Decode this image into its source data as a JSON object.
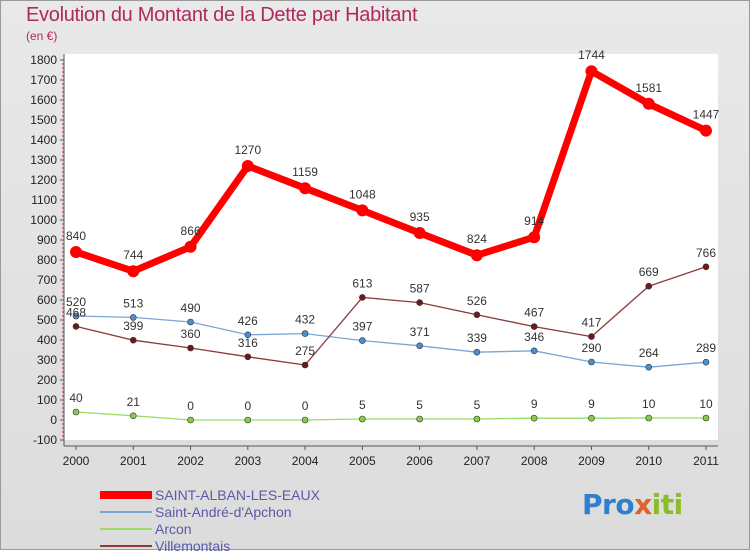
{
  "chart_data": {
    "type": "line",
    "title": "Evolution du Montant de la Dette par Habitant",
    "subtitle": "(en €)",
    "categories": [
      "2000",
      "2001",
      "2002",
      "2003",
      "2004",
      "2005",
      "2006",
      "2007",
      "2008",
      "2009",
      "2010",
      "2011"
    ],
    "ylim": [
      -100,
      1800
    ],
    "yticks": [
      -100,
      0,
      100,
      200,
      300,
      400,
      500,
      600,
      700,
      800,
      900,
      1000,
      1100,
      1200,
      1300,
      1400,
      1500,
      1600,
      1700,
      1800
    ],
    "grid": false,
    "legend_position": "bottom-left",
    "series": [
      {
        "name": "SAINT-ALBAN-LES-EAUX",
        "color": "#ff0000",
        "marker": "#ff0000",
        "values": [
          840,
          744,
          866,
          1270,
          1159,
          1048,
          935,
          824,
          914,
          1744,
          1581,
          1447
        ]
      },
      {
        "name": "Saint-André-d'Apchon",
        "color": "#7aa6d4",
        "marker": "#4a8fd0",
        "values": [
          520,
          513,
          490,
          426,
          432,
          397,
          371,
          339,
          346,
          290,
          264,
          289
        ]
      },
      {
        "name": "Arcon",
        "color": "#99dd66",
        "marker": "#88cc44",
        "values": [
          40,
          21,
          0,
          0,
          0,
          5,
          5,
          5,
          9,
          9,
          10,
          10
        ]
      },
      {
        "name": "Villemontais",
        "color": "#8a3a3a",
        "marker": "#6e1a1a",
        "values": [
          468,
          399,
          360,
          316,
          275,
          613,
          587,
          526,
          467,
          417,
          669,
          766
        ]
      }
    ]
  },
  "logo": {
    "part1": "Pro",
    "part2": "x",
    "part3": "iti"
  }
}
